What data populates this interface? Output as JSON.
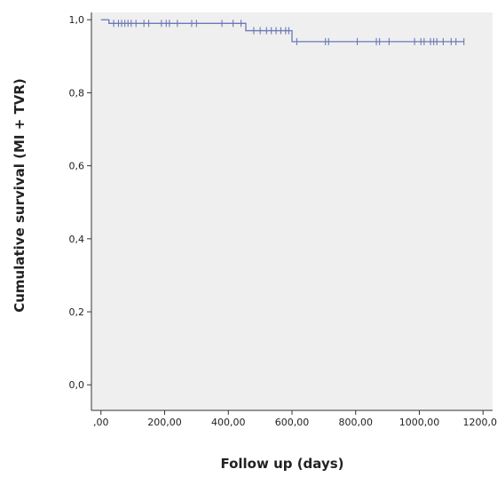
{
  "chart_data": {
    "type": "line",
    "title": "",
    "xlabel": "Follow up (days)",
    "ylabel": "Cumulative survival (MI + TVR)",
    "xlim": [
      -30,
      1230
    ],
    "ylim": [
      -0.07,
      1.02
    ],
    "x_ticks": [
      0,
      200,
      400,
      600,
      800,
      1000,
      1200
    ],
    "x_tick_labels": [
      ",00",
      "200,00",
      "400,00",
      "600,00",
      "800,00",
      "1000,00",
      "1200,00"
    ],
    "y_ticks": [
      0,
      0.2,
      0.4,
      0.6,
      0.8,
      1.0
    ],
    "y_tick_labels": [
      "0,0",
      "0,2",
      "0,4",
      "0,6",
      "0,8",
      "1,0"
    ],
    "grid": false,
    "colors": {
      "plot_background": "#efefef",
      "line": "#6a79b8",
      "axis": "#333333"
    },
    "series": [
      {
        "steps": [
          [
            0,
            1.0
          ],
          [
            25,
            0.99
          ],
          [
            455,
            0.97
          ],
          [
            600,
            0.94
          ],
          [
            1140,
            0.94
          ]
        ],
        "censored": [
          [
            40,
            0.99
          ],
          [
            55,
            0.99
          ],
          [
            65,
            0.99
          ],
          [
            75,
            0.99
          ],
          [
            85,
            0.99
          ],
          [
            95,
            0.99
          ],
          [
            110,
            0.99
          ],
          [
            135,
            0.99
          ],
          [
            150,
            0.99
          ],
          [
            190,
            0.99
          ],
          [
            205,
            0.99
          ],
          [
            215,
            0.99
          ],
          [
            240,
            0.99
          ],
          [
            285,
            0.99
          ],
          [
            300,
            0.99
          ],
          [
            380,
            0.99
          ],
          [
            415,
            0.99
          ],
          [
            440,
            0.99
          ],
          [
            480,
            0.97
          ],
          [
            500,
            0.97
          ],
          [
            520,
            0.97
          ],
          [
            535,
            0.97
          ],
          [
            550,
            0.97
          ],
          [
            565,
            0.97
          ],
          [
            580,
            0.97
          ],
          [
            590,
            0.97
          ],
          [
            615,
            0.94
          ],
          [
            705,
            0.94
          ],
          [
            715,
            0.94
          ],
          [
            805,
            0.94
          ],
          [
            865,
            0.94
          ],
          [
            875,
            0.94
          ],
          [
            905,
            0.94
          ],
          [
            985,
            0.94
          ],
          [
            1005,
            0.94
          ],
          [
            1015,
            0.94
          ],
          [
            1035,
            0.94
          ],
          [
            1045,
            0.94
          ],
          [
            1055,
            0.94
          ],
          [
            1075,
            0.94
          ],
          [
            1100,
            0.94
          ],
          [
            1115,
            0.94
          ],
          [
            1140,
            0.94
          ]
        ]
      }
    ]
  }
}
